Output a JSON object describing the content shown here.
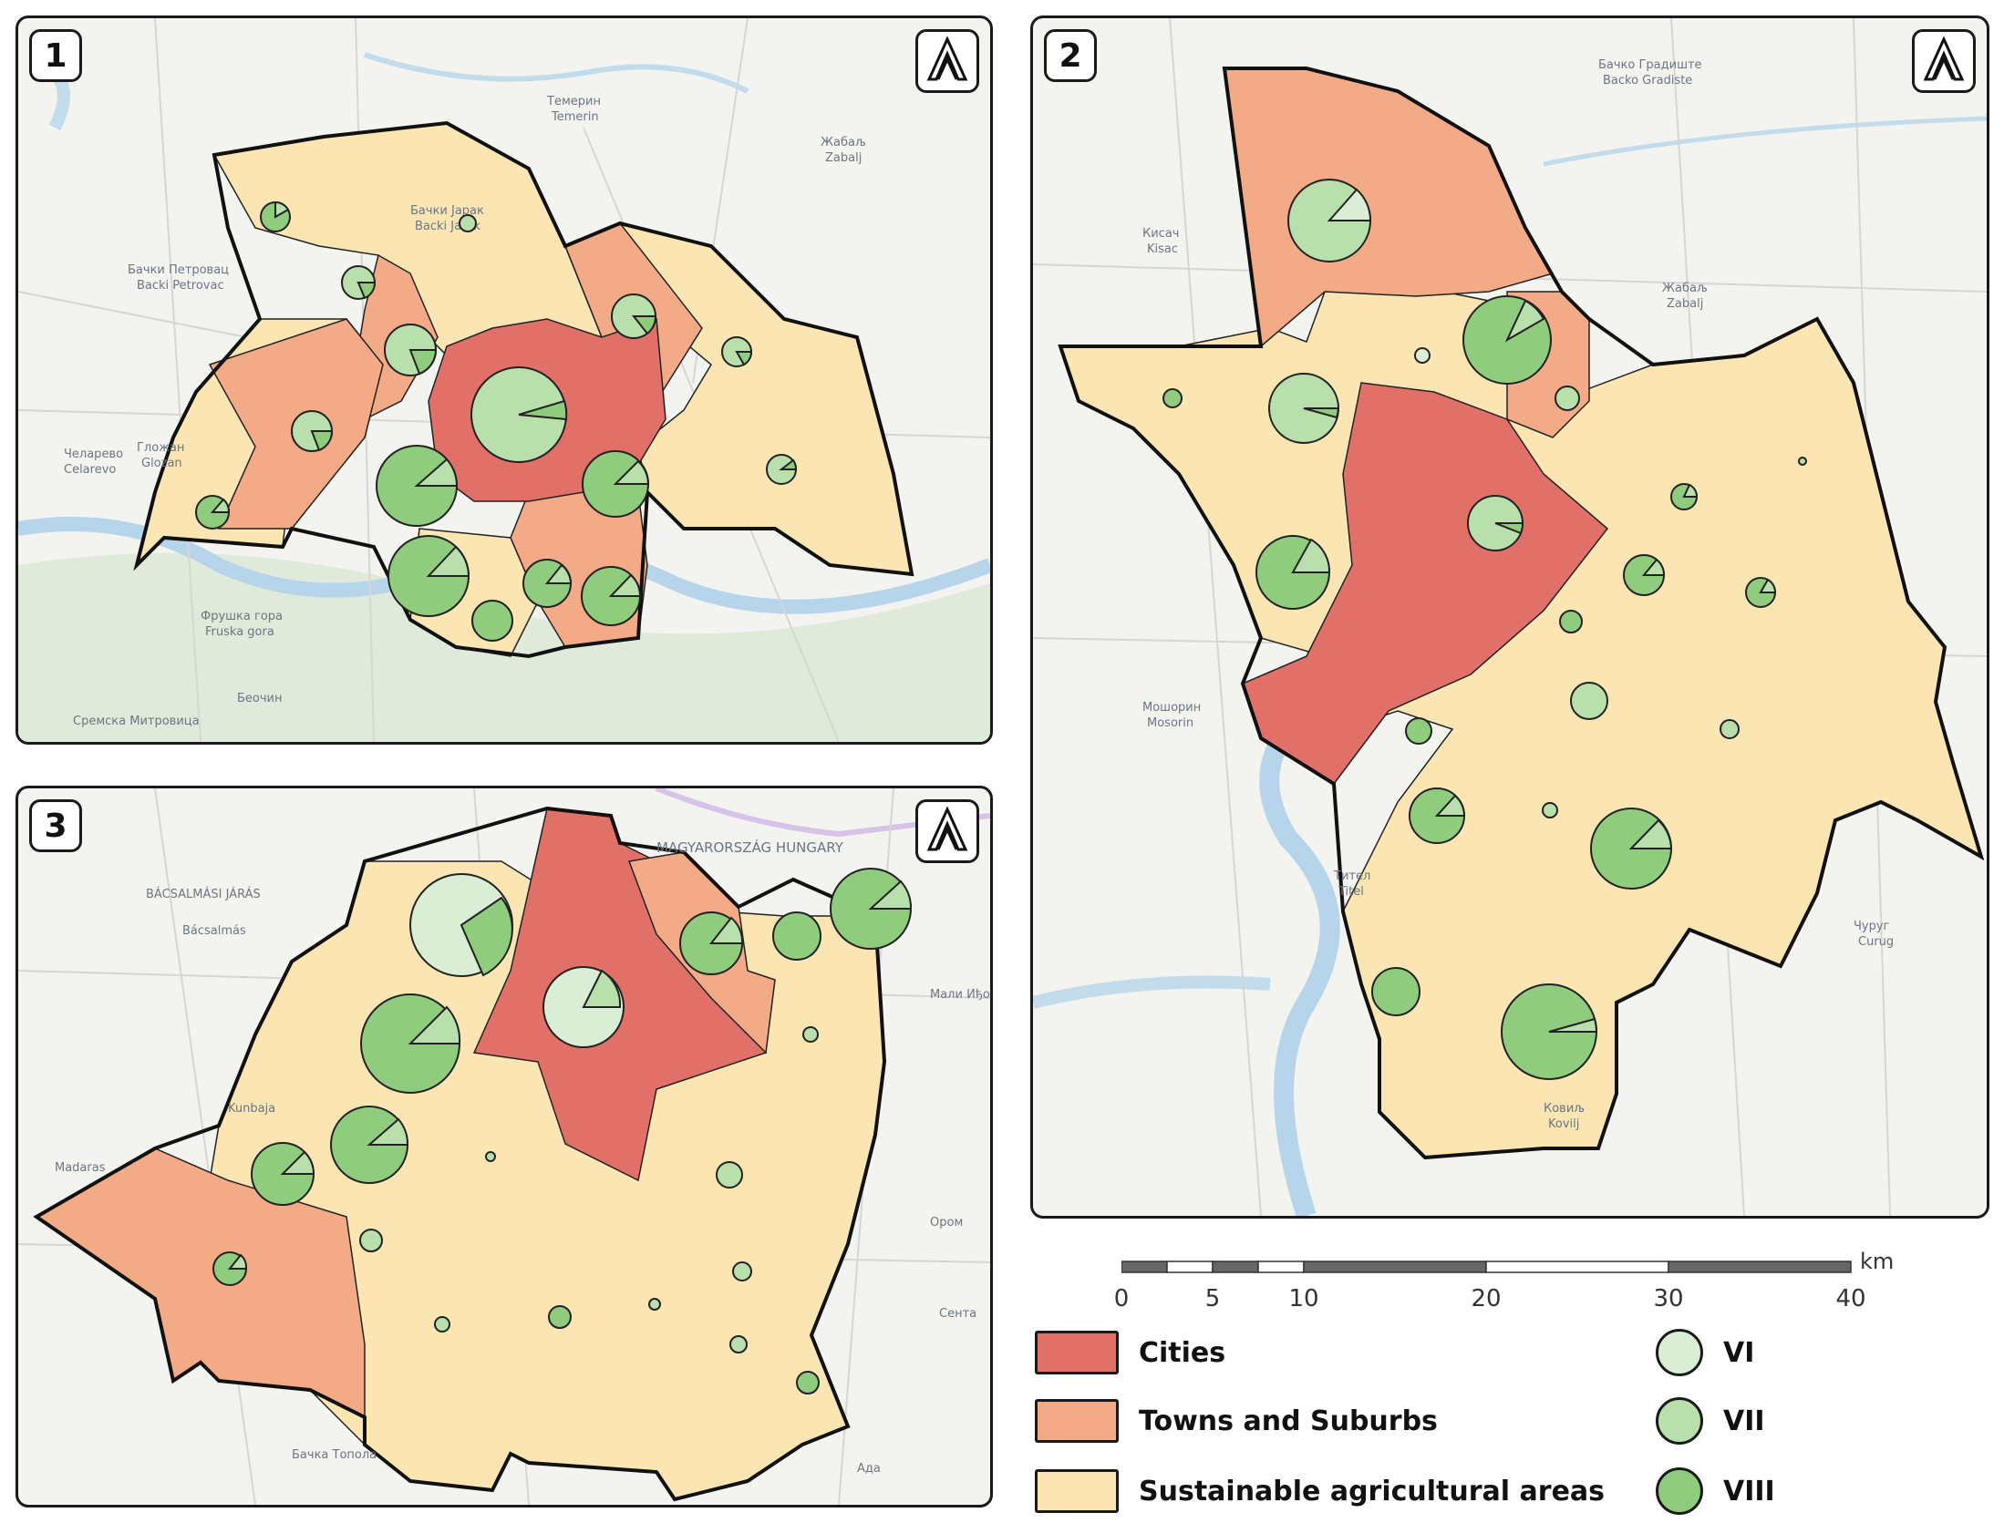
{
  "panels": [
    {
      "number": "1",
      "north_icon": "north-arrow-icon"
    },
    {
      "number": "2",
      "north_icon": "north-arrow-icon"
    },
    {
      "number": "3",
      "north_icon": "north-arrow-icon"
    }
  ],
  "basemap_labels": {
    "panel1": [
      "Бачки Петровац",
      "Backi Petrovac",
      "Бачки Јарак",
      "Backi Jarak",
      "Темерин",
      "Temerin",
      "Жабаљ",
      "Zabalj",
      "Гложан",
      "Glozan",
      "Челарево",
      "Celarevo",
      "Фрушка гора",
      "Fruska gora",
      "Беочин",
      "Сремска Митровица"
    ],
    "panel2": [
      "Бачко Градиште",
      "Backo Gradiste",
      "Жабаљ",
      "Zabalj",
      "Мошорин",
      "Mosorin",
      "Тител",
      "Titel",
      "Чуруг",
      "Curug",
      "Ковиљ",
      "Kovilj",
      "Кисач",
      "Kisac"
    ],
    "panel3": [
      "MAGYARORSZÁG HUNGARY",
      "BÁCSALMÁSI JÁRÁS",
      "Bácsalmás",
      "Kunbaja",
      "Madaras",
      "Бачка Топола",
      "Мали Иђош",
      "Сента",
      "Ада",
      "Ором"
    ]
  },
  "scale": {
    "unit": "km",
    "ticks": [
      "0",
      "5",
      "10",
      "20",
      "30",
      "40"
    ]
  },
  "legend": {
    "zones": [
      {
        "label": "Cities",
        "color": "#e07068"
      },
      {
        "label": "Towns and Suburbs",
        "color": "#f2ab86"
      },
      {
        "label": "Sustainable agricultural areas",
        "color": "#fae5b3"
      }
    ],
    "classes": [
      {
        "label": "VI",
        "color": "#d9eed4"
      },
      {
        "label": "VII",
        "color": "#b8dfac"
      },
      {
        "label": "VIII",
        "color": "#8fcc7e"
      }
    ]
  }
}
